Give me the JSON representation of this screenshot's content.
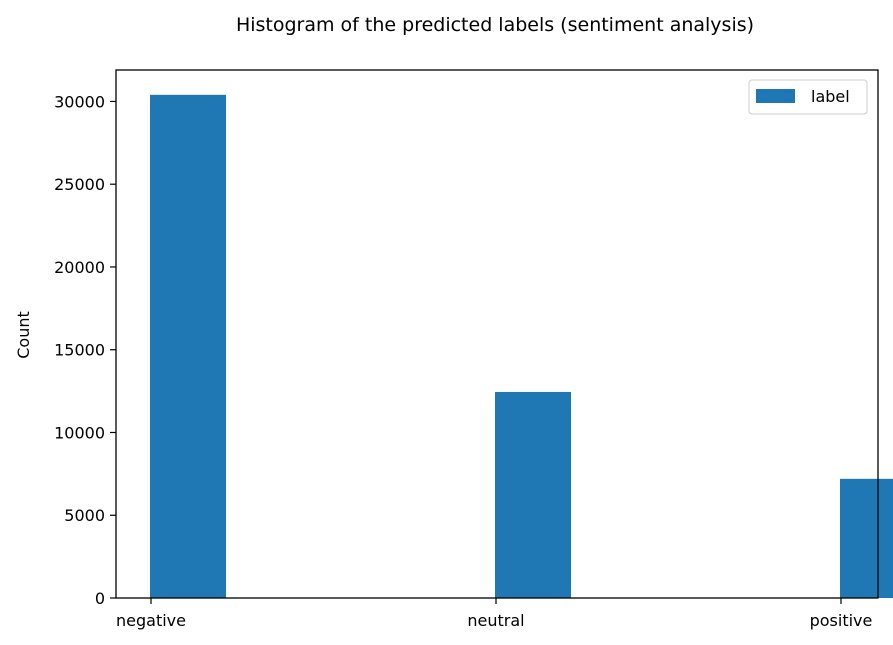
{
  "chart_data": {
    "type": "bar",
    "title": "Histogram of the predicted labels (sentiment analysis)",
    "xlabel": "",
    "ylabel": "Count",
    "categories": [
      "negative",
      "neutral",
      "positive"
    ],
    "series": [
      {
        "name": "label",
        "values": [
          30400,
          12450,
          7200
        ],
        "color": "#1f77b4"
      }
    ],
    "ylim": [
      0,
      31900
    ],
    "yticks": [
      0,
      5000,
      10000,
      15000,
      20000,
      25000,
      30000
    ],
    "ytick_labels": [
      "0",
      "5000",
      "10000",
      "15000",
      "20000",
      "25000",
      "30000"
    ],
    "grid": false,
    "legend_position": "top-right"
  }
}
